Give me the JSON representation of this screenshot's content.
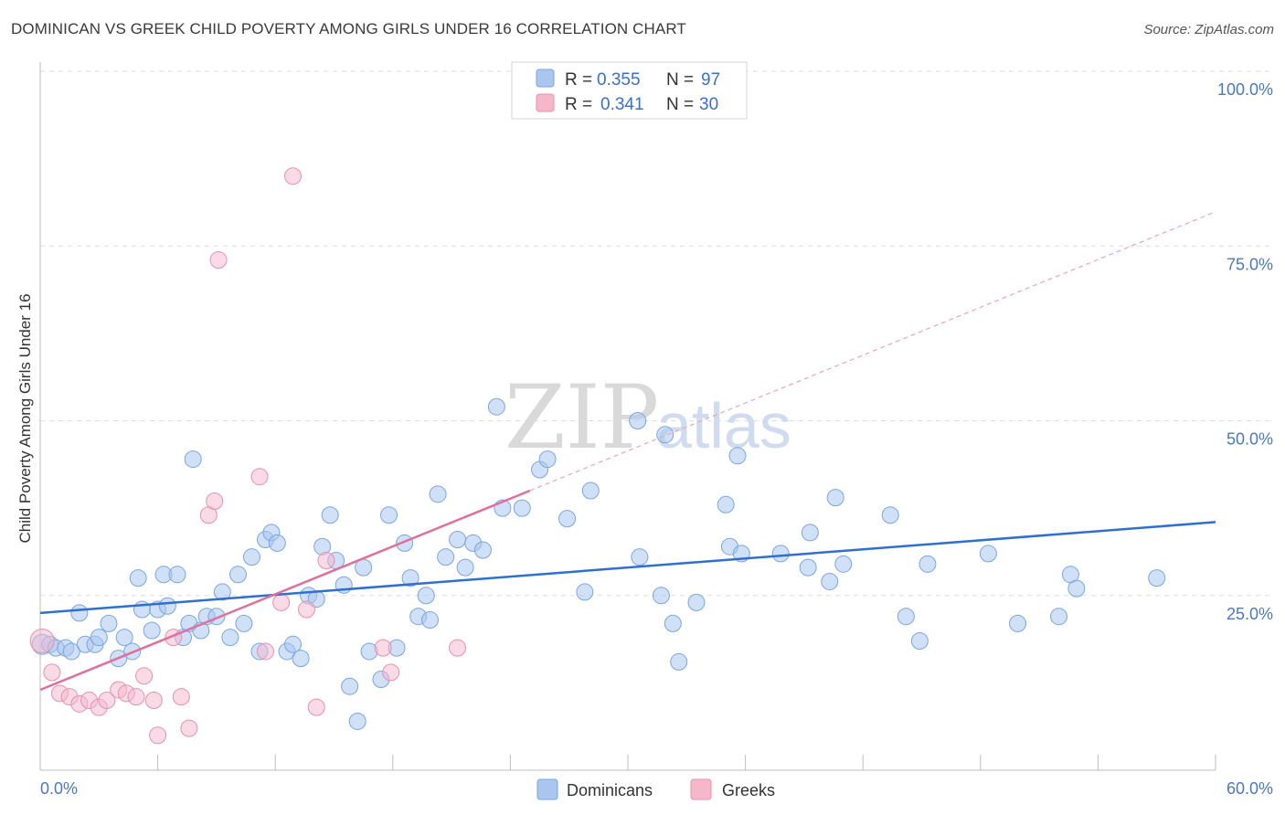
{
  "header": {
    "title": "DOMINICAN VS GREEK CHILD POVERTY AMONG GIRLS UNDER 16 CORRELATION CHART",
    "source": "Source: ZipAtlas.com"
  },
  "watermark": {
    "zip": "ZIP",
    "atlas": "atlas"
  },
  "legend_top": [
    {
      "r_label": "R = ",
      "r_value": "0.355",
      "n_label": "N = ",
      "n_value": "97",
      "color": "#a9c6ef"
    },
    {
      "r_label": "R = ",
      "r_value": "0.341",
      "n_label": "N = ",
      "n_value": "30",
      "color": "#f5b8cb"
    }
  ],
  "legend_bottom": [
    {
      "label": "Dominicans",
      "color": "#a9c6ef"
    },
    {
      "label": "Greeks",
      "color": "#f5b8cb"
    }
  ],
  "chart_data": {
    "type": "scatter",
    "title": "DOMINICAN VS GREEK CHILD POVERTY AMONG GIRLS UNDER 16 CORRELATION CHART",
    "xlabel": "",
    "ylabel": "Child Poverty Among Girls Under 16",
    "xlim": [
      0,
      60
    ],
    "ylim": [
      0,
      100
    ],
    "x_tick_labels": [
      "0.0%",
      "60.0%"
    ],
    "y_tick_labels": [
      "25.0%",
      "50.0%",
      "75.0%",
      "100.0%"
    ],
    "y_ticks": [
      25,
      50,
      75,
      100
    ],
    "grid": "horizontal dashed",
    "legend_placement": "top-center",
    "series": [
      {
        "name": "Dominicans",
        "color": "#a9c6ef",
        "edge": "#7aa6e0",
        "trend": {
          "x0": 0,
          "y0": 22.5,
          "x1": 60,
          "y1": 35.5,
          "color": "#2f6fce"
        },
        "points": [
          [
            0.1,
            18
          ],
          [
            0.5,
            18
          ],
          [
            0.8,
            17.5
          ],
          [
            1.3,
            17.5
          ],
          [
            1.6,
            17
          ],
          [
            2,
            22.5
          ],
          [
            2.3,
            18
          ],
          [
            2.8,
            18
          ],
          [
            3,
            19
          ],
          [
            3.5,
            21
          ],
          [
            4,
            16
          ],
          [
            4.3,
            19
          ],
          [
            4.7,
            17
          ],
          [
            5,
            27.5
          ],
          [
            5.2,
            23
          ],
          [
            5.7,
            20
          ],
          [
            6,
            23
          ],
          [
            6.3,
            28
          ],
          [
            6.5,
            23.5
          ],
          [
            7,
            28
          ],
          [
            7.3,
            19
          ],
          [
            7.6,
            21
          ],
          [
            7.8,
            44.5
          ],
          [
            8.2,
            20
          ],
          [
            8.5,
            22
          ],
          [
            9,
            22
          ],
          [
            9.3,
            25.5
          ],
          [
            9.7,
            19
          ],
          [
            10.1,
            28
          ],
          [
            10.4,
            21
          ],
          [
            10.8,
            30.5
          ],
          [
            11.2,
            17
          ],
          [
            11.5,
            33
          ],
          [
            11.8,
            34
          ],
          [
            12.1,
            32.5
          ],
          [
            12.6,
            17
          ],
          [
            12.9,
            18
          ],
          [
            13.3,
            16
          ],
          [
            13.7,
            25
          ],
          [
            14.1,
            24.5
          ],
          [
            14.4,
            32
          ],
          [
            14.8,
            36.5
          ],
          [
            15.1,
            30
          ],
          [
            15.5,
            26.5
          ],
          [
            15.8,
            12
          ],
          [
            16.2,
            7
          ],
          [
            16.5,
            29
          ],
          [
            16.8,
            17
          ],
          [
            17.4,
            13
          ],
          [
            17.8,
            36.5
          ],
          [
            18.2,
            17.5
          ],
          [
            18.6,
            32.5
          ],
          [
            18.9,
            27.5
          ],
          [
            19.3,
            22
          ],
          [
            19.7,
            25
          ],
          [
            19.9,
            21.5
          ],
          [
            20.3,
            39.5
          ],
          [
            20.7,
            30.5
          ],
          [
            21.3,
            33
          ],
          [
            21.7,
            29
          ],
          [
            22.1,
            32.5
          ],
          [
            22.6,
            31.5
          ],
          [
            23.3,
            52
          ],
          [
            23.6,
            37.5
          ],
          [
            24.6,
            37.5
          ],
          [
            25.5,
            43
          ],
          [
            25.9,
            44.5
          ],
          [
            26.9,
            36
          ],
          [
            28.1,
            40
          ],
          [
            27.8,
            25.5
          ],
          [
            30.5,
            50
          ],
          [
            30.6,
            30.5
          ],
          [
            31.7,
            25
          ],
          [
            31.9,
            48
          ],
          [
            32.3,
            21
          ],
          [
            32.6,
            15.5
          ],
          [
            33.5,
            24
          ],
          [
            35,
            38
          ],
          [
            35.2,
            32
          ],
          [
            35.8,
            31
          ],
          [
            35.6,
            45
          ],
          [
            37.8,
            31
          ],
          [
            39.2,
            29
          ],
          [
            39.3,
            34
          ],
          [
            40.3,
            27
          ],
          [
            40.6,
            39
          ],
          [
            41,
            29.5
          ],
          [
            43.4,
            36.5
          ],
          [
            44.2,
            22
          ],
          [
            44.9,
            18.5
          ],
          [
            45.3,
            29.5
          ],
          [
            48.4,
            31
          ],
          [
            49.9,
            21
          ],
          [
            52,
            22
          ],
          [
            52.6,
            28
          ],
          [
            52.9,
            26
          ],
          [
            57,
            27.5
          ]
        ]
      },
      {
        "name": "Greeks",
        "color": "#f5b8cb",
        "edge": "#e890ab",
        "trend": {
          "x0": 0,
          "y0": 11.5,
          "x1": 25,
          "y1": 40,
          "color": "#e0709b"
        },
        "points": [
          [
            0.1,
            18.5
          ],
          [
            0.6,
            14
          ],
          [
            1,
            11
          ],
          [
            1.5,
            10.5
          ],
          [
            2,
            9.5
          ],
          [
            2.5,
            10
          ],
          [
            3,
            9
          ],
          [
            3.4,
            10
          ],
          [
            4,
            11.5
          ],
          [
            4.4,
            11
          ],
          [
            4.9,
            10.5
          ],
          [
            5.3,
            13.5
          ],
          [
            5.8,
            10
          ],
          [
            6,
            5
          ],
          [
            6.8,
            19
          ],
          [
            7.2,
            10.5
          ],
          [
            7.6,
            6
          ],
          [
            8.6,
            36.5
          ],
          [
            8.9,
            38.5
          ],
          [
            9.1,
            73
          ],
          [
            11.2,
            42
          ],
          [
            11.5,
            17
          ],
          [
            12.3,
            24
          ],
          [
            12.9,
            85
          ],
          [
            13.6,
            23
          ],
          [
            14.1,
            9
          ],
          [
            14.6,
            30
          ],
          [
            17.5,
            17.5
          ],
          [
            17.9,
            14
          ],
          [
            21.3,
            17.5
          ]
        ]
      }
    ]
  }
}
